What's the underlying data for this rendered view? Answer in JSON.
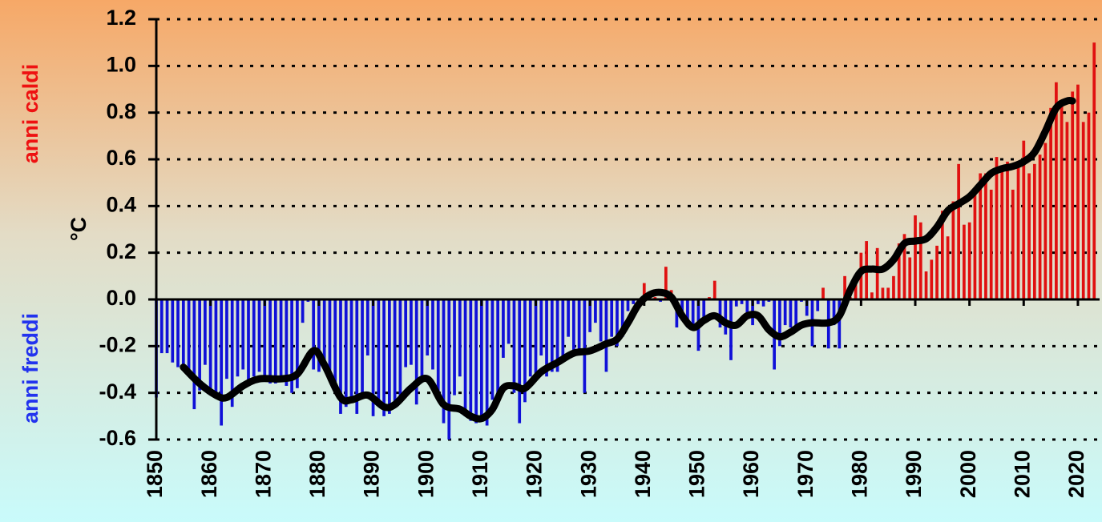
{
  "chart_data": {
    "type": "bar",
    "ylabel": "°C",
    "annotations": [
      "anni caldi",
      "anni freddi"
    ],
    "annotation_colors": [
      "#ee1111",
      "#2233ee"
    ],
    "positive_color": "#e01010",
    "negative_color": "#1010d8",
    "xlim": [
      1850,
      2024
    ],
    "ylim": [
      -0.6,
      1.2
    ],
    "yticks": [
      -0.6,
      -0.4,
      -0.2,
      {
        "value": 0,
        "label": "0.0"
      },
      0.2,
      0.4,
      0.6,
      0.8,
      {
        "value": 1,
        "label": "1.0"
      },
      1.2
    ],
    "xticks": [
      1850,
      1860,
      1870,
      1880,
      1890,
      1900,
      1910,
      1920,
      1930,
      1940,
      1950,
      1960,
      1970,
      1980,
      1990,
      2000,
      2010,
      2020
    ],
    "grid": true,
    "x": [
      1850,
      1851,
      1852,
      1853,
      1854,
      1855,
      1856,
      1857,
      1858,
      1859,
      1860,
      1861,
      1862,
      1863,
      1864,
      1865,
      1866,
      1867,
      1868,
      1869,
      1870,
      1871,
      1872,
      1873,
      1874,
      1875,
      1876,
      1877,
      1878,
      1879,
      1880,
      1881,
      1882,
      1883,
      1884,
      1885,
      1886,
      1887,
      1888,
      1889,
      1890,
      1891,
      1892,
      1893,
      1894,
      1895,
      1896,
      1897,
      1898,
      1899,
      1900,
      1901,
      1902,
      1903,
      1904,
      1905,
      1906,
      1907,
      1908,
      1909,
      1910,
      1911,
      1912,
      1913,
      1914,
      1915,
      1916,
      1917,
      1918,
      1919,
      1920,
      1921,
      1922,
      1923,
      1924,
      1925,
      1926,
      1927,
      1928,
      1929,
      1930,
      1931,
      1932,
      1933,
      1934,
      1935,
      1936,
      1937,
      1938,
      1939,
      1940,
      1941,
      1942,
      1943,
      1944,
      1945,
      1946,
      1947,
      1948,
      1949,
      1950,
      1951,
      1952,
      1953,
      1954,
      1955,
      1956,
      1957,
      1958,
      1959,
      1960,
      1961,
      1962,
      1963,
      1964,
      1965,
      1966,
      1967,
      1968,
      1969,
      1970,
      1971,
      1972,
      1973,
      1974,
      1975,
      1976,
      1977,
      1978,
      1979,
      1980,
      1981,
      1982,
      1983,
      1984,
      1985,
      1986,
      1987,
      1988,
      1989,
      1990,
      1991,
      1992,
      1993,
      1994,
      1995,
      1996,
      1997,
      1998,
      1999,
      2000,
      2001,
      2002,
      2003,
      2004,
      2005,
      2006,
      2007,
      2008,
      2009,
      2010,
      2011,
      2012,
      2013,
      2014,
      2015,
      2016,
      2017,
      2018,
      2019,
      2020,
      2021,
      2022,
      2023
    ],
    "values": [
      -0.42,
      -0.23,
      -0.23,
      -0.27,
      -0.29,
      -0.29,
      -0.33,
      -0.47,
      -0.39,
      -0.28,
      -0.39,
      -0.41,
      -0.54,
      -0.34,
      -0.46,
      -0.33,
      -0.3,
      -0.35,
      -0.33,
      -0.31,
      -0.33,
      -0.36,
      -0.36,
      -0.33,
      -0.37,
      -0.4,
      -0.38,
      -0.1,
      -0.01,
      -0.3,
      -0.31,
      -0.26,
      -0.33,
      -0.4,
      -0.49,
      -0.46,
      -0.42,
      -0.49,
      -0.4,
      -0.24,
      -0.5,
      -0.43,
      -0.5,
      -0.49,
      -0.45,
      -0.43,
      -0.29,
      -0.28,
      -0.45,
      -0.34,
      -0.24,
      -0.3,
      -0.43,
      -0.53,
      -0.6,
      -0.41,
      -0.33,
      -0.5,
      -0.52,
      -0.53,
      -0.5,
      -0.54,
      -0.43,
      -0.43,
      -0.25,
      -0.19,
      -0.4,
      -0.53,
      -0.44,
      -0.33,
      -0.33,
      -0.24,
      -0.33,
      -0.31,
      -0.31,
      -0.26,
      -0.16,
      -0.24,
      -0.24,
      -0.4,
      -0.14,
      -0.1,
      -0.18,
      -0.31,
      -0.16,
      -0.2,
      -0.16,
      -0.05,
      -0.02,
      -0.02,
      0.07,
      0.03,
      0.01,
      -0.01,
      0.14,
      0.04,
      -0.12,
      -0.09,
      -0.12,
      -0.13,
      -0.22,
      -0.1,
      0.01,
      0.08,
      -0.12,
      -0.15,
      -0.26,
      -0.03,
      -0.02,
      -0.06,
      -0.11,
      -0.02,
      -0.03,
      -0.01,
      -0.3,
      -0.2,
      -0.11,
      -0.12,
      -0.14,
      -0.01,
      -0.07,
      -0.2,
      -0.05,
      0.05,
      -0.21,
      -0.11,
      -0.21,
      0.1,
      0.01,
      0.09,
      0.2,
      0.25,
      0.03,
      0.22,
      0.05,
      0.05,
      0.1,
      0.24,
      0.28,
      0.18,
      0.36,
      0.33,
      0.12,
      0.17,
      0.23,
      0.38,
      0.27,
      0.42,
      0.58,
      0.32,
      0.33,
      0.48,
      0.54,
      0.54,
      0.47,
      0.61,
      0.56,
      0.59,
      0.47,
      0.59,
      0.68,
      0.54,
      0.58,
      0.62,
      0.67,
      0.82,
      0.93,
      0.84,
      0.76,
      0.89,
      0.92,
      0.76,
      0.8,
      1.1
    ],
    "smooth": {
      "type": "line",
      "color": "#000000",
      "x": [
        1855,
        1858,
        1861,
        1863,
        1866,
        1869,
        1873,
        1876,
        1879,
        1881,
        1884,
        1886,
        1889,
        1892,
        1894,
        1897,
        1900,
        1903,
        1906,
        1908,
        1910,
        1912,
        1914,
        1916,
        1918,
        1921,
        1924,
        1927,
        1930,
        1933,
        1935,
        1937,
        1939,
        1941,
        1943,
        1945,
        1947,
        1949,
        1951,
        1953,
        1955,
        1957,
        1959,
        1961,
        1963,
        1965,
        1967,
        1969,
        1971,
        1974,
        1976,
        1978,
        1980,
        1982,
        1984,
        1986,
        1988,
        1990,
        1992,
        1994,
        1996,
        1998,
        2000,
        2002,
        2004,
        2006,
        2008,
        2010,
        2012,
        2014,
        2016,
        2018,
        2019
      ],
      "values": [
        -0.29,
        -0.36,
        -0.41,
        -0.42,
        -0.37,
        -0.34,
        -0.34,
        -0.32,
        -0.22,
        -0.28,
        -0.42,
        -0.43,
        -0.41,
        -0.46,
        -0.45,
        -0.38,
        -0.34,
        -0.45,
        -0.47,
        -0.5,
        -0.51,
        -0.47,
        -0.38,
        -0.37,
        -0.38,
        -0.31,
        -0.27,
        -0.23,
        -0.22,
        -0.19,
        -0.17,
        -0.1,
        -0.02,
        0.02,
        0.03,
        0.01,
        -0.07,
        -0.12,
        -0.09,
        -0.07,
        -0.1,
        -0.11,
        -0.07,
        -0.07,
        -0.13,
        -0.16,
        -0.14,
        -0.11,
        -0.1,
        -0.1,
        -0.07,
        0.04,
        0.12,
        0.13,
        0.13,
        0.17,
        0.24,
        0.25,
        0.26,
        0.31,
        0.38,
        0.41,
        0.44,
        0.49,
        0.54,
        0.56,
        0.57,
        0.59,
        0.63,
        0.72,
        0.82,
        0.85,
        0.85
      ]
    }
  }
}
